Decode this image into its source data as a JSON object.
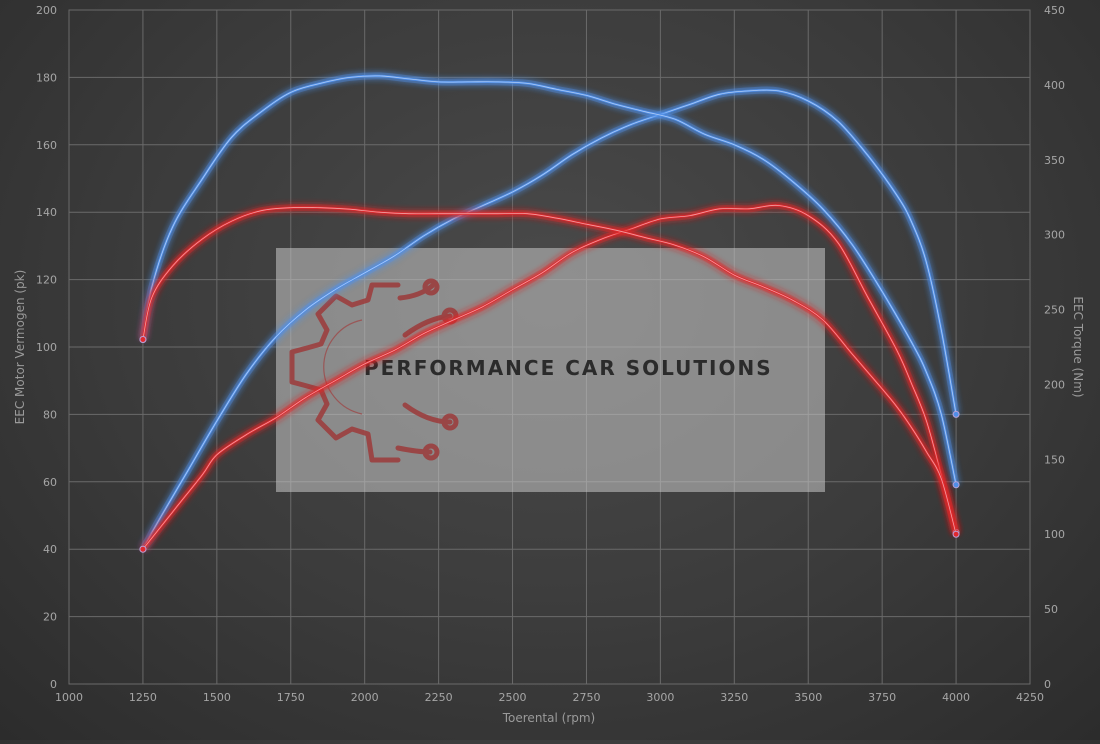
{
  "chart_data": {
    "type": "line",
    "xlabel": "Toerental (rpm)",
    "ylabel_left": "EEC Motor Vermogen (pk)",
    "ylabel_right": "EEC Torque (Nm)",
    "xlim": [
      1000,
      4250
    ],
    "ylim_left": [
      0,
      200
    ],
    "ylim_right": [
      0,
      450
    ],
    "x_ticks": [
      1000,
      1250,
      1500,
      1750,
      2000,
      2250,
      2500,
      2750,
      3000,
      3250,
      3500,
      3750,
      4000,
      4250
    ],
    "y_ticks_left": [
      0,
      20,
      40,
      60,
      80,
      100,
      120,
      140,
      160,
      180,
      200
    ],
    "y_ticks_right": [
      0,
      50,
      100,
      150,
      200,
      250,
      300,
      350,
      400,
      450
    ],
    "grid": true,
    "series": [
      {
        "axis": "left",
        "color": "#4f8ee8",
        "points": [
          [
            1250,
            40
          ],
          [
            1300,
            48
          ],
          [
            1400,
            63
          ],
          [
            1500,
            78
          ],
          [
            1600,
            92
          ],
          [
            1700,
            103
          ],
          [
            1800,
            111
          ],
          [
            1900,
            117
          ],
          [
            2000,
            122
          ],
          [
            2100,
            127
          ],
          [
            2200,
            133
          ],
          [
            2300,
            138
          ],
          [
            2400,
            142
          ],
          [
            2500,
            146
          ],
          [
            2600,
            151
          ],
          [
            2700,
            157
          ],
          [
            2800,
            162
          ],
          [
            2900,
            166
          ],
          [
            3000,
            169
          ],
          [
            3100,
            172
          ],
          [
            3200,
            175
          ],
          [
            3300,
            176
          ],
          [
            3400,
            176
          ],
          [
            3500,
            173
          ],
          [
            3600,
            167
          ],
          [
            3700,
            157
          ],
          [
            3800,
            145
          ],
          [
            3850,
            137
          ],
          [
            3900,
            125
          ],
          [
            3950,
            105
          ],
          [
            4000,
            80
          ]
        ]
      },
      {
        "axis": "right",
        "color": "#4f8ee8",
        "points": [
          [
            1250,
            230
          ],
          [
            1280,
            265
          ],
          [
            1350,
            305
          ],
          [
            1450,
            337
          ],
          [
            1550,
            365
          ],
          [
            1650,
            382
          ],
          [
            1750,
            395
          ],
          [
            1850,
            401
          ],
          [
            1950,
            405
          ],
          [
            2050,
            406
          ],
          [
            2150,
            404
          ],
          [
            2250,
            402
          ],
          [
            2350,
            402
          ],
          [
            2450,
            402
          ],
          [
            2550,
            401
          ],
          [
            2650,
            397
          ],
          [
            2750,
            393
          ],
          [
            2850,
            387
          ],
          [
            2950,
            382
          ],
          [
            3050,
            377
          ],
          [
            3150,
            367
          ],
          [
            3250,
            360
          ],
          [
            3350,
            350
          ],
          [
            3450,
            335
          ],
          [
            3550,
            317
          ],
          [
            3650,
            293
          ],
          [
            3750,
            262
          ],
          [
            3850,
            228
          ],
          [
            3900,
            208
          ],
          [
            3950,
            180
          ],
          [
            4000,
            133
          ]
        ]
      },
      {
        "axis": "left",
        "color": "#e0282e",
        "points": [
          [
            1250,
            40
          ],
          [
            1350,
            51
          ],
          [
            1450,
            62
          ],
          [
            1500,
            68
          ],
          [
            1600,
            74
          ],
          [
            1700,
            79
          ],
          [
            1800,
            85
          ],
          [
            1900,
            90
          ],
          [
            2000,
            95
          ],
          [
            2100,
            99
          ],
          [
            2200,
            104
          ],
          [
            2300,
            108
          ],
          [
            2400,
            112
          ],
          [
            2500,
            117
          ],
          [
            2600,
            122
          ],
          [
            2700,
            128
          ],
          [
            2800,
            132
          ],
          [
            2900,
            135
          ],
          [
            3000,
            138
          ],
          [
            3100,
            139
          ],
          [
            3200,
            141
          ],
          [
            3300,
            141
          ],
          [
            3400,
            142
          ],
          [
            3500,
            139
          ],
          [
            3600,
            131
          ],
          [
            3700,
            115
          ],
          [
            3800,
            99
          ],
          [
            3850,
            89
          ],
          [
            3900,
            78
          ],
          [
            3950,
            62
          ],
          [
            4000,
            45
          ]
        ]
      },
      {
        "axis": "right",
        "color": "#e0282e",
        "points": [
          [
            1250,
            230
          ],
          [
            1280,
            258
          ],
          [
            1350,
            279
          ],
          [
            1450,
            297
          ],
          [
            1550,
            309
          ],
          [
            1650,
            316
          ],
          [
            1750,
            318
          ],
          [
            1850,
            318
          ],
          [
            1950,
            317
          ],
          [
            2050,
            315
          ],
          [
            2150,
            314
          ],
          [
            2250,
            314
          ],
          [
            2350,
            314
          ],
          [
            2450,
            314
          ],
          [
            2550,
            314
          ],
          [
            2650,
            311
          ],
          [
            2750,
            307
          ],
          [
            2850,
            303
          ],
          [
            2950,
            298
          ],
          [
            3050,
            293
          ],
          [
            3150,
            285
          ],
          [
            3250,
            273
          ],
          [
            3350,
            265
          ],
          [
            3450,
            256
          ],
          [
            3550,
            243
          ],
          [
            3650,
            220
          ],
          [
            3750,
            197
          ],
          [
            3800,
            185
          ],
          [
            3850,
            171
          ],
          [
            3900,
            155
          ],
          [
            3950,
            137
          ],
          [
            4000,
            100
          ]
        ]
      }
    ]
  },
  "watermark": {
    "text": "PERFORMANCE CAR SOLUTIONS",
    "logo_icon": "gear-circuit-icon"
  }
}
